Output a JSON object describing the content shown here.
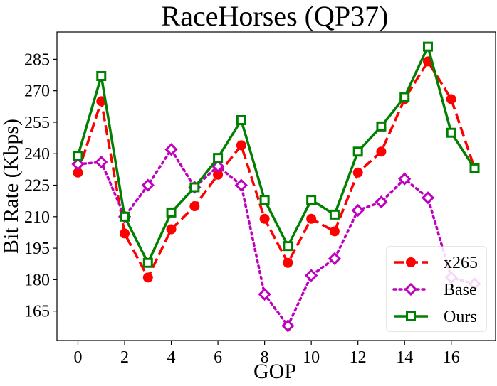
{
  "chart_data": {
    "type": "line",
    "title": "RaceHorses (QP37)",
    "xlabel": "GOP",
    "ylabel": "Bit Rate (Kbps)",
    "xlim": [
      -0.9,
      17.9
    ],
    "ylim": [
      151,
      298
    ],
    "xticks": [
      0,
      2,
      4,
      6,
      8,
      10,
      12,
      14,
      16
    ],
    "yticks": [
      165,
      180,
      195,
      210,
      225,
      240,
      255,
      270,
      285
    ],
    "x": [
      0,
      1,
      2,
      3,
      4,
      5,
      6,
      7,
      8,
      9,
      10,
      11,
      12,
      13,
      14,
      15,
      16,
      17
    ],
    "grid": false,
    "legend_position": "lower-right",
    "series": [
      {
        "name": "x265",
        "color": "#ff0000",
        "linestyle": "dashed",
        "marker": "circle",
        "values": [
          231,
          265,
          202,
          181,
          204,
          215,
          230,
          244,
          209,
          188,
          209,
          203,
          231,
          241,
          266,
          284,
          266,
          233
        ]
      },
      {
        "name": "Base",
        "color": "#bf00bf",
        "linestyle": "dotted",
        "marker": "diamond",
        "values": [
          235,
          236,
          210,
          225,
          242,
          224,
          234,
          225,
          173,
          158,
          182,
          190,
          213,
          217,
          228,
          219,
          181,
          178
        ]
      },
      {
        "name": "Ours",
        "color": "#008000",
        "linestyle": "solid",
        "marker": "square",
        "values": [
          239,
          277,
          210,
          188,
          212,
          224,
          238,
          256,
          218,
          196,
          218,
          211,
          241,
          253,
          267,
          291,
          250,
          233
        ]
      }
    ]
  }
}
